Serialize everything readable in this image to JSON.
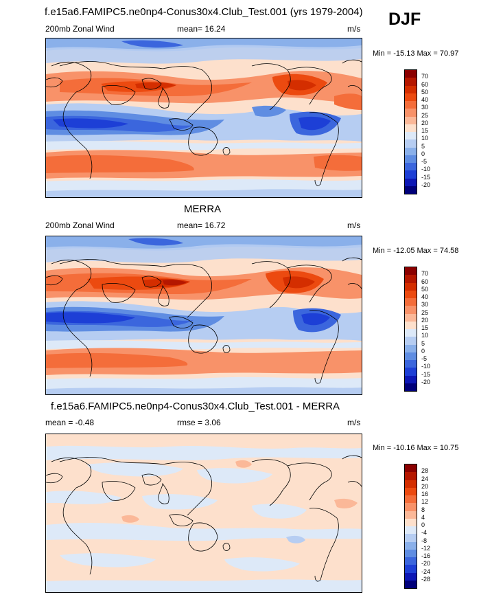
{
  "season": "DJF",
  "panels": [
    {
      "title": "f.e15a6.FAMIPC5.ne0np4-Conus30x4.Club_Test.001 (yrs 1979-2004)",
      "left_label": "200mb Zonal Wind",
      "mean_label": "mean=  16.24",
      "units": "m/s",
      "minmax": "Min = -15.13 Max = 70.97",
      "colorbar_labels": [
        "70",
        "60",
        "50",
        "40",
        "30",
        "25",
        "20",
        "15",
        "10",
        "5",
        "0",
        "-5",
        "-10",
        "-15",
        "-20"
      ],
      "colorbar_colors": [
        "#8b0000",
        "#b51700",
        "#d42e00",
        "#ec4a10",
        "#f46d3a",
        "#f89269",
        "#fbb898",
        "#fde0cc",
        "#dde9f8",
        "#b6cdf2",
        "#8ab0ea",
        "#5f8de2",
        "#3b66dd",
        "#1d3fd6",
        "#0c17b5",
        "#00007a"
      ]
    },
    {
      "title": "MERRA",
      "left_label": "200mb Zonal Wind",
      "mean_label": "mean=  16.72",
      "units": "m/s",
      "minmax": "Min = -12.05 Max = 74.58",
      "colorbar_labels": [
        "70",
        "60",
        "50",
        "40",
        "30",
        "25",
        "20",
        "15",
        "10",
        "5",
        "0",
        "-5",
        "-10",
        "-15",
        "-20"
      ],
      "colorbar_colors": [
        "#8b0000",
        "#b51700",
        "#d42e00",
        "#ec4a10",
        "#f46d3a",
        "#f89269",
        "#fbb898",
        "#fde0cc",
        "#dde9f8",
        "#b6cdf2",
        "#8ab0ea",
        "#5f8de2",
        "#3b66dd",
        "#1d3fd6",
        "#0c17b5",
        "#00007a"
      ]
    },
    {
      "title": "f.e15a6.FAMIPC5.ne0np4-Conus30x4.Club_Test.001 - MERRA",
      "left_label": "mean =  -0.48",
      "mean_label": "rmse =   3.06",
      "units": "m/s",
      "minmax": "Min = -10.16 Max = 10.75",
      "colorbar_labels": [
        "28",
        "24",
        "20",
        "16",
        "12",
        "8",
        "4",
        "0",
        "-4",
        "-8",
        "-12",
        "-16",
        "-20",
        "-24",
        "-28"
      ],
      "colorbar_colors": [
        "#8b0000",
        "#b51700",
        "#d42e00",
        "#ec4a10",
        "#f46d3a",
        "#f89269",
        "#fbb898",
        "#fde0cc",
        "#dde9f8",
        "#b6cdf2",
        "#8ab0ea",
        "#5f8de2",
        "#3b66dd",
        "#1d3fd6",
        "#0c17b5",
        "#00007a"
      ]
    }
  ]
}
